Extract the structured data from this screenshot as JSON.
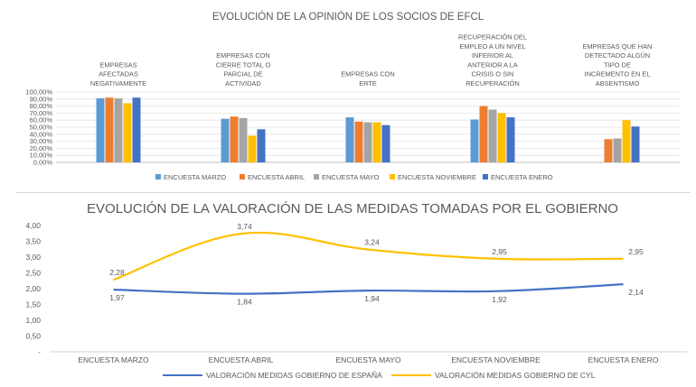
{
  "chart_data": [
    {
      "type": "bar",
      "title": "EVOLUCIÓN DE LA OPINIÓN DE LOS SOCIOS DE EFCL",
      "categories": [
        [
          "EMPRESAS",
          "AFECTADAS",
          "NEGATIVAMENTE"
        ],
        [
          "EMPRESAS CON",
          "CIERRE TOTAL O",
          "PARCIAL DE",
          "ACTIVIDAD"
        ],
        [
          "EMPRESAS CON",
          "ERTE"
        ],
        [
          "RECUPERACIÓN DEL",
          "EMPLEO A UN NIVEL",
          "INFERIOR AL",
          "ANTERIOR A LA",
          "CRISIS O SIN",
          "RECUPERACIÓN"
        ],
        [
          "EMPRESAS QUE HAN",
          "DETECTADO ALGÚN",
          "TIPO DE",
          "INCREMENTO EN EL",
          "ABSENTISMO"
        ]
      ],
      "ylim": [
        0,
        100
      ],
      "yticks": [
        "0,00%",
        "10,00%",
        "20,00%",
        "30,00%",
        "40,00%",
        "50,00%",
        "60,00%",
        "70,00%",
        "80,00%",
        "90,00%",
        "100,00%"
      ],
      "series": [
        {
          "name": "ENCUESTA MARZO",
          "color": "#5b9bd5",
          "values": [
            91,
            62,
            64,
            61,
            null
          ]
        },
        {
          "name": "ENCUESTA ABRIL",
          "color": "#ed7d31",
          "values": [
            92,
            65,
            58,
            80,
            33
          ]
        },
        {
          "name": "ENCUESTA MAYO",
          "color": "#a5a5a5",
          "values": [
            91,
            63,
            57,
            75,
            34
          ]
        },
        {
          "name": "ENCUESTA NOVIEMBRE",
          "color": "#ffc000",
          "values": [
            84,
            38,
            57,
            70,
            60
          ]
        },
        {
          "name": "ENCUESTA ENERO",
          "color": "#4472c4",
          "values": [
            92,
            47,
            53,
            64,
            51
          ]
        }
      ],
      "grid": true,
      "legend": "bottom"
    },
    {
      "type": "line",
      "title": "EVOLUCIÓN DE LA VALORACIÓN DE LAS MEDIDAS TOMADAS POR EL GOBIERNO",
      "categories": [
        "ENCUESTA MARZO",
        "ENCUESTA ABRIL",
        "ENCUESTA MAYO",
        "ENCUESTA NOVIEMBRE",
        "ENCUESTA ENERO"
      ],
      "ylim": [
        0,
        4
      ],
      "yticks": [
        "-",
        "0,50",
        "1,00",
        "1,50",
        "2,00",
        "2,50",
        "3,00",
        "3,50",
        "4,00"
      ],
      "series": [
        {
          "name": "VALORACIÓN MEDIDAS GOBIERNO DE ESPAÑA",
          "color": "#4472c4",
          "values": [
            1.97,
            1.84,
            1.94,
            1.92,
            2.14
          ],
          "labels": [
            "1,97",
            "1,84",
            "1,94",
            "1,92",
            "2,14"
          ]
        },
        {
          "name": "VALORACIÓN MEDIDAS GOBIERNO DE CYL",
          "color": "#ffc000",
          "values": [
            2.28,
            3.74,
            3.24,
            2.95,
            2.95
          ],
          "labels": [
            "2,28",
            "3,74",
            "3,24",
            "2,95",
            "2,95"
          ]
        }
      ],
      "grid": false,
      "legend": "bottom"
    }
  ]
}
